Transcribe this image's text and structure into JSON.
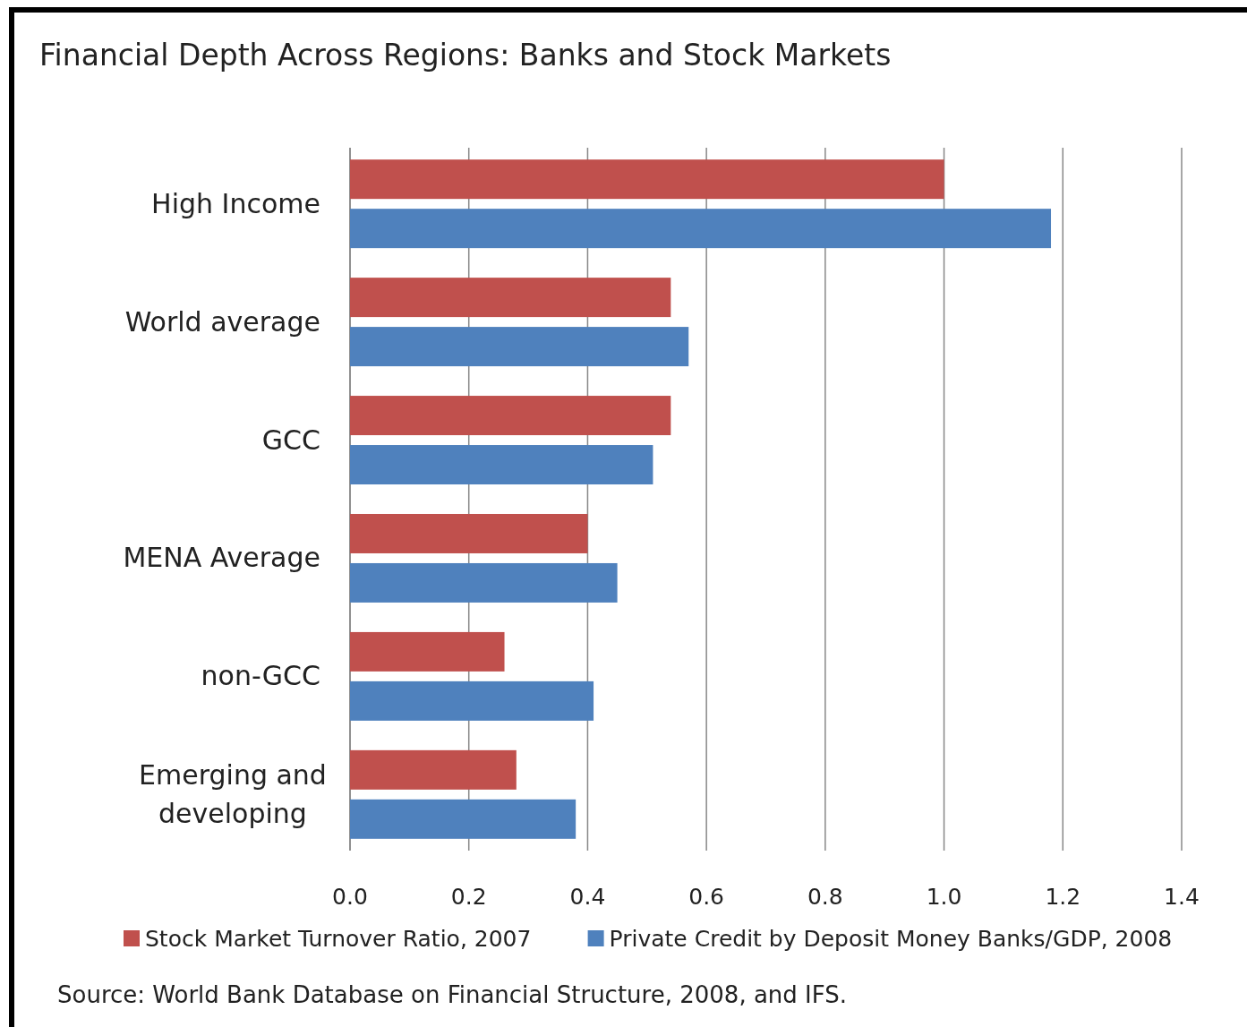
{
  "chart_data": {
    "type": "bar",
    "orientation": "horizontal",
    "title": "Financial Depth Across Regions: Banks and Stock Markets",
    "categories": [
      "High Income",
      "World average",
      "GCC",
      "MENA Average",
      "non-GCC",
      "Emerging and developing"
    ],
    "series": [
      {
        "name": "Stock Market Turnover Ratio, 2007",
        "color": "#c0504d",
        "values": [
          1.0,
          0.54,
          0.54,
          0.4,
          0.26,
          0.28
        ]
      },
      {
        "name": "Private Credit by Deposit Money Banks/GDP, 2008",
        "color": "#4f81bd",
        "values": [
          1.18,
          0.57,
          0.51,
          0.45,
          0.41,
          0.38
        ]
      }
    ],
    "xlim": [
      0,
      1.4
    ],
    "xticks": [
      {
        "value": 0,
        "label": "0.0"
      },
      0.2,
      0.4,
      0.6,
      0.8,
      {
        "value": 1,
        "label": "1.0"
      },
      1.2,
      1.4
    ],
    "grid": "x",
    "legend": "bottom",
    "annotations": [
      "Source: World Bank Database on Financial Structure, 2008, and IFS."
    ]
  }
}
